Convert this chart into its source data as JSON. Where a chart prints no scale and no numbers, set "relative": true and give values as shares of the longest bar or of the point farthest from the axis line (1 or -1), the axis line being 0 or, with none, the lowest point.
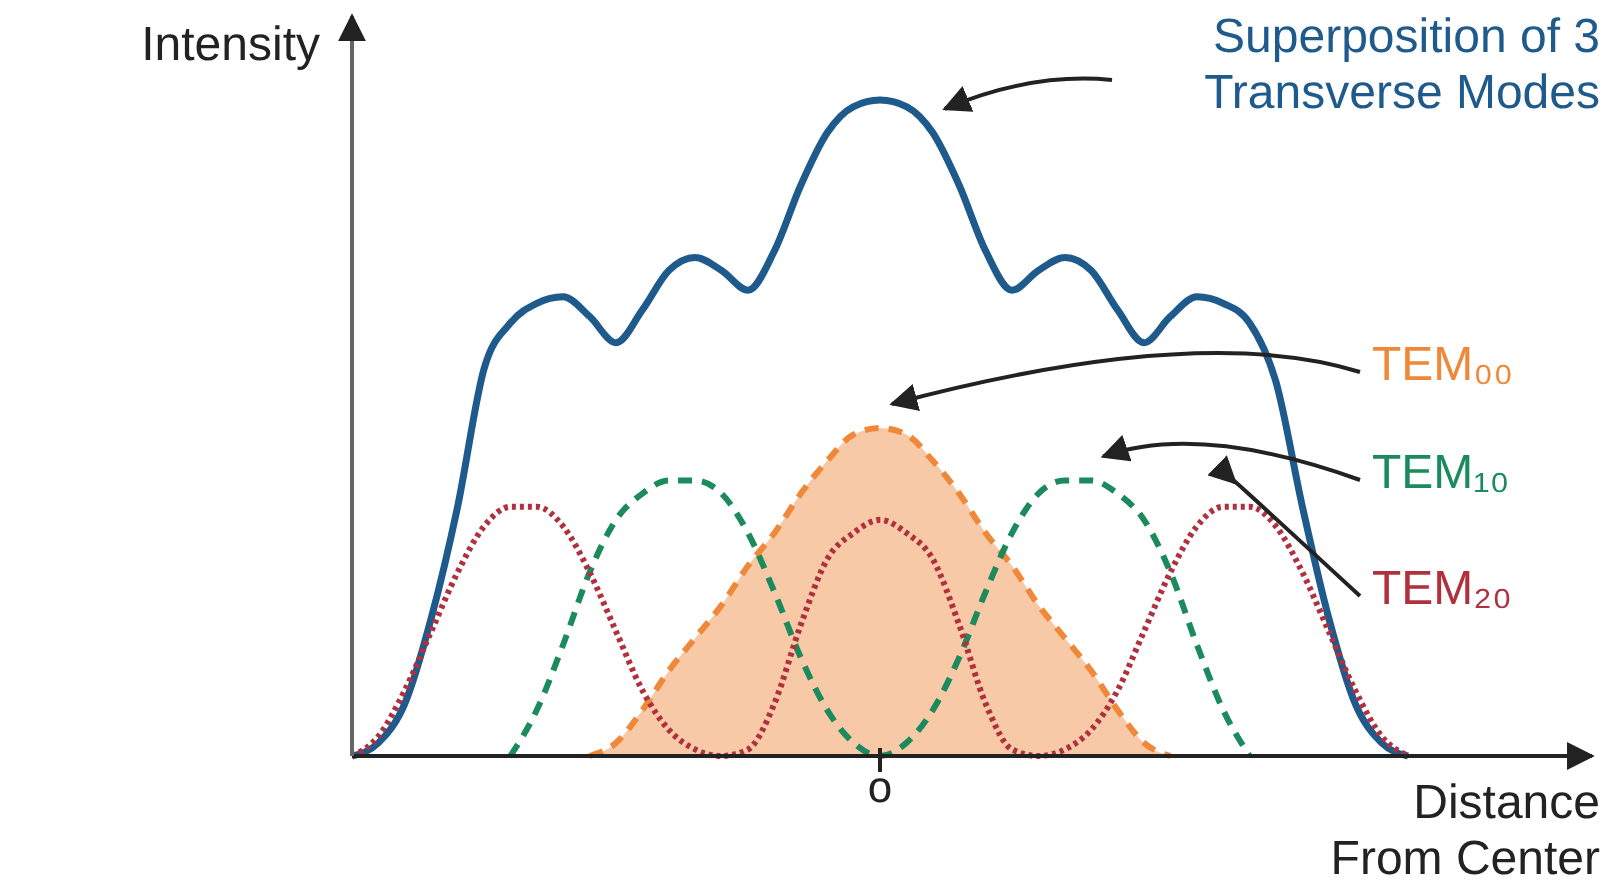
{
  "chart_data": {
    "type": "line",
    "relative": true,
    "xlabel": "Distance From Center",
    "ylabel": "Intensity",
    "legend": false,
    "categories": [
      null,
      null,
      null,
      null,
      null,
      null,
      null,
      null,
      null,
      null,
      null,
      null,
      null,
      null,
      null,
      null,
      null,
      null,
      null,
      null,
      null,
      null,
      null,
      null,
      null,
      null,
      null,
      null,
      null,
      null,
      null,
      null,
      null,
      null,
      null,
      null,
      null,
      null,
      null,
      null,
      null
    ],
    "annotations": [
      "o"
    ],
    "series": [
      {
        "name": "Superposition of 3 Transverse Modes",
        "color": "#1f5a8c",
        "line_style": "solid",
        "values": [
          0,
          0.02,
          0.08,
          0.21,
          0.38,
          0.59,
          0.66,
          0.69,
          0.7,
          0.67,
          0.63,
          0.68,
          0.74,
          0.76,
          0.74,
          0.71,
          0.77,
          0.87,
          0.95,
          0.99,
          1,
          0.99,
          0.95,
          0.87,
          0.77,
          0.71,
          0.74,
          0.76,
          0.74,
          0.68,
          0.63,
          0.67,
          0.7,
          0.69,
          0.66,
          0.57,
          0.38,
          0.21,
          0.08,
          0.02,
          0
        ]
      },
      {
        "name": "TEM₀₀",
        "type": "area",
        "color": "#f0883a",
        "line_style": "dashed",
        "values": [
          null,
          null,
          null,
          null,
          null,
          null,
          null,
          null,
          null,
          0,
          0.02,
          0.07,
          0.13,
          0.18,
          0.23,
          0.29,
          0.34,
          0.4,
          0.45,
          0.49,
          0.5,
          0.49,
          0.45,
          0.4,
          0.34,
          0.29,
          0.23,
          0.18,
          0.13,
          0.07,
          0.02,
          0,
          null,
          null,
          null,
          null,
          null,
          null,
          null,
          null,
          null
        ]
      },
      {
        "name": "TEM₁₀",
        "color": "#1b8a5c",
        "line_style": "dashed",
        "values": [
          null,
          null,
          null,
          null,
          null,
          null,
          0,
          0.07,
          0.17,
          0.28,
          0.36,
          0.4,
          0.42,
          0.42,
          0.4,
          0.34,
          0.25,
          0.15,
          0.07,
          0.02,
          0,
          0.02,
          0.07,
          0.15,
          0.25,
          0.34,
          0.4,
          0.42,
          0.42,
          0.4,
          0.36,
          0.28,
          0.17,
          0.07,
          0,
          null,
          null,
          null,
          null,
          null,
          null
        ]
      },
      {
        "name": "TEM₂₀",
        "color": "#b0303e",
        "line_style": "dotted",
        "values": [
          0,
          0.03,
          0.1,
          0.19,
          0.28,
          0.35,
          0.38,
          0.38,
          0.35,
          0.28,
          0.19,
          0.1,
          0.04,
          0.01,
          0,
          0.01,
          0.08,
          0.2,
          0.3,
          0.34,
          0.36,
          0.34,
          0.3,
          0.2,
          0.08,
          0.01,
          0,
          0.01,
          0.04,
          0.1,
          0.19,
          0.28,
          0.35,
          0.38,
          0.38,
          0.35,
          0.28,
          0.19,
          0.1,
          0.03,
          0
        ]
      }
    ]
  }
}
